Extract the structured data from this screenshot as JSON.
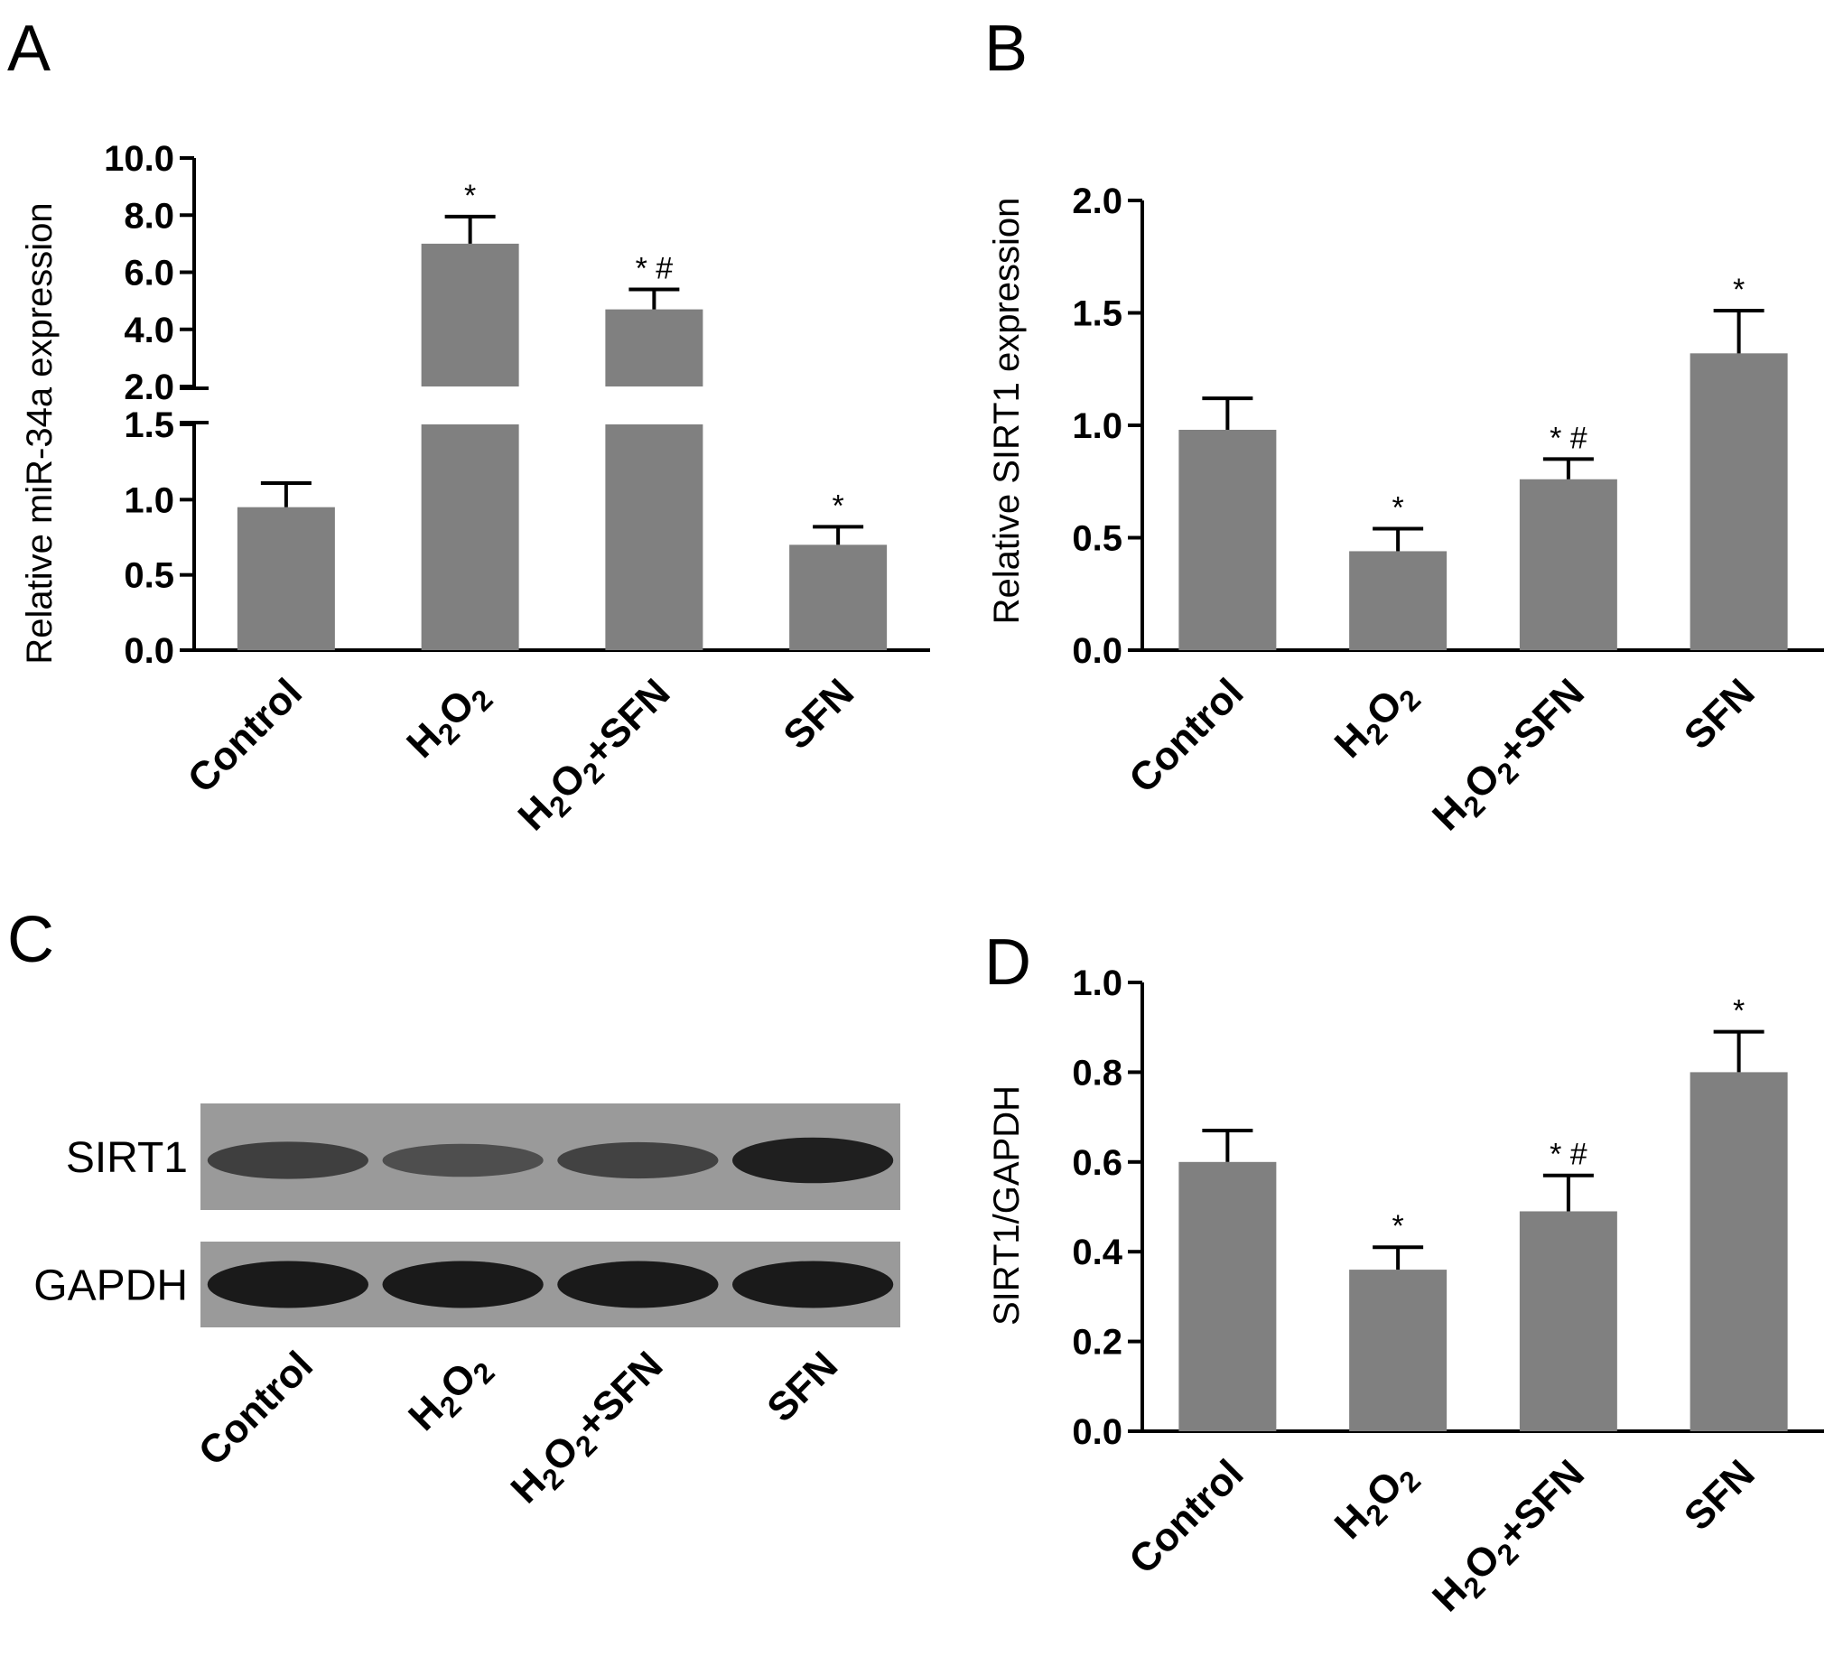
{
  "panels": {
    "A": "A",
    "B": "B",
    "C": "C",
    "D": "D"
  },
  "categories_display": [
    {
      "label": "Control"
    },
    {
      "label": "H2O2",
      "parts": [
        [
          "H",
          ""
        ],
        [
          "2",
          "sub"
        ],
        [
          "O",
          ""
        ],
        [
          "2",
          "sub"
        ]
      ]
    },
    {
      "label": "H2O2+SFN",
      "parts": [
        [
          "H",
          ""
        ],
        [
          "2",
          "sub"
        ],
        [
          "O",
          ""
        ],
        [
          "2",
          "sub"
        ],
        [
          "+SFN",
          ""
        ]
      ]
    },
    {
      "label": "SFN"
    }
  ],
  "blot": {
    "rows": [
      {
        "label": "SIRT1",
        "intensities": [
          0.62,
          0.45,
          0.58,
          0.95
        ]
      },
      {
        "label": "GAPDH",
        "intensities": [
          1.0,
          1.0,
          1.0,
          1.0
        ]
      }
    ]
  },
  "colors": {
    "bar": "#808080",
    "axis": "#000000",
    "blot_bg": "#9a9a9a",
    "band": "#1a1a1a"
  },
  "chart_data": [
    {
      "panel": "A",
      "type": "bar",
      "ylabel": "Relative miR-34a expression",
      "categories": [
        "Control",
        "H2O2",
        "H2O2+SFN",
        "SFN"
      ],
      "values": [
        0.95,
        7.0,
        4.7,
        0.7
      ],
      "errors": [
        0.16,
        0.95,
        0.7,
        0.12
      ],
      "annotations": [
        "",
        "*",
        "*#",
        "*"
      ],
      "axis_break": [
        1.5,
        2.0
      ],
      "lower_ticks": [
        "0.0",
        "0.5",
        "1.0",
        "1.5"
      ],
      "upper_ticks": [
        "2.0",
        "4.0",
        "6.0",
        "8.0",
        "10.0"
      ],
      "ylim_lower": [
        0,
        1.5
      ],
      "ylim_upper": [
        2.0,
        10.0
      ]
    },
    {
      "panel": "B",
      "type": "bar",
      "ylabel": "Relative SIRT1 expression",
      "categories": [
        "Control",
        "H2O2",
        "H2O2+SFN",
        "SFN"
      ],
      "values": [
        0.98,
        0.44,
        0.76,
        1.32
      ],
      "errors": [
        0.14,
        0.1,
        0.09,
        0.19
      ],
      "annotations": [
        "",
        "*",
        "*#",
        "*"
      ],
      "ticks": [
        "0.0",
        "0.5",
        "1.0",
        "1.5",
        "2.0"
      ],
      "ylim": [
        0,
        2.0
      ]
    },
    {
      "panel": "D",
      "type": "bar",
      "ylabel": "SIRT1/GAPDH",
      "categories": [
        "Control",
        "H2O2",
        "H2O2+SFN",
        "SFN"
      ],
      "values": [
        0.6,
        0.36,
        0.49,
        0.8
      ],
      "errors": [
        0.07,
        0.05,
        0.08,
        0.09
      ],
      "annotations": [
        "",
        "*",
        "*#",
        "*"
      ],
      "ticks": [
        "0.0",
        "0.2",
        "0.4",
        "0.6",
        "0.8",
        "1.0"
      ],
      "ylim": [
        0,
        1.0
      ]
    }
  ]
}
